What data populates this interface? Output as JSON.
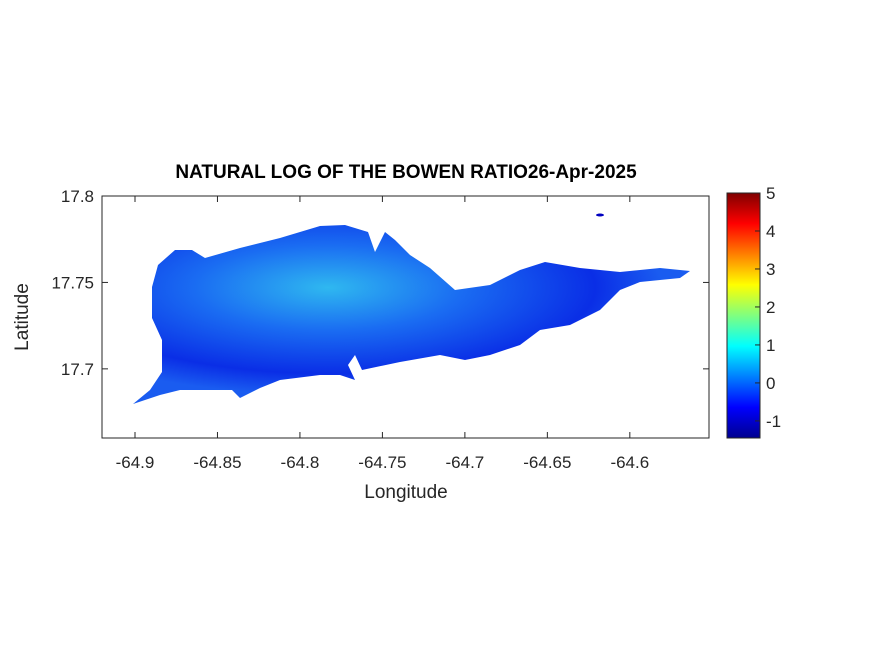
{
  "chart_data": {
    "type": "map",
    "title": "NATURAL LOG OF THE BOWEN RATIO26-Apr-2025",
    "x_label": "Longitude",
    "y_label": "Latitude",
    "xlim": [
      -64.92,
      -64.552
    ],
    "xticks": [
      -64.9,
      -64.85,
      -64.8,
      -64.75,
      -64.7,
      -64.65,
      -64.6
    ],
    "ylim": [
      17.66,
      17.8
    ],
    "yticks": [
      17.7,
      17.75,
      17.8
    ],
    "colormap": "jet",
    "colorbar": {
      "lim": [
        -1.45,
        5
      ],
      "ticks": [
        -1,
        0,
        1,
        2,
        3,
        4,
        5
      ]
    }
  }
}
